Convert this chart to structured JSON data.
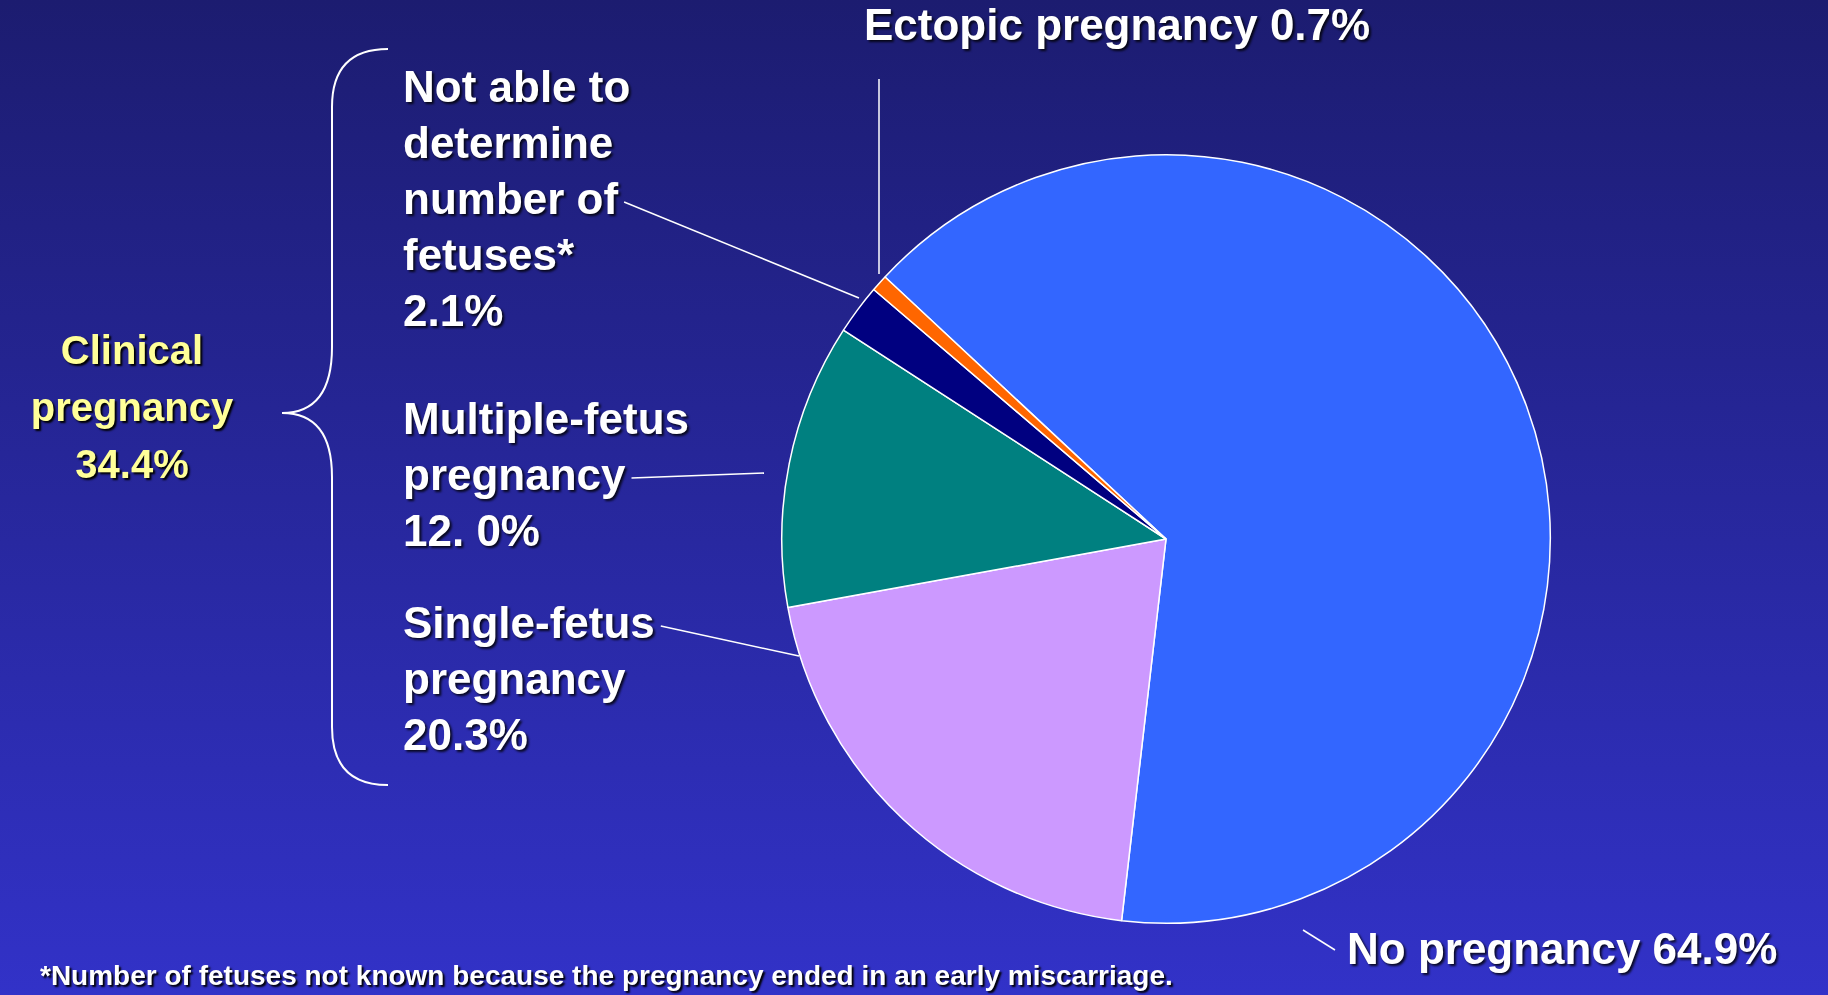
{
  "chart_data": {
    "type": "pie",
    "categories": [
      "No pregnancy",
      "Single-fetus pregnancy",
      "Multiple-fetus pregnancy",
      "Not able to determine number of fetuses*",
      "Ectopic pregnancy"
    ],
    "values": [
      64.9,
      20.3,
      12.0,
      2.1,
      0.7
    ],
    "value_labels": [
      "64.9%",
      "20.3%",
      "12. 0%",
      "2.1%",
      "0.7%"
    ],
    "colors": [
      "#3366ff",
      "#cc99ff",
      "#008080",
      "#000080",
      "#ff6600"
    ],
    "legend": false,
    "annotations": [
      "Clinical pregnancy 34.4%",
      "*Number of fetuses not known because the pregnancy ended in an early miscarriage."
    ]
  }
}
